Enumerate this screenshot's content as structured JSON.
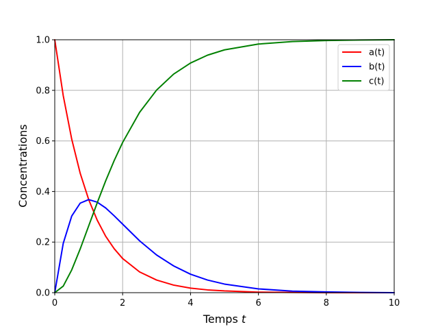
{
  "chart_data": {
    "type": "line",
    "xlabel": "Temps",
    "xlabel_italic": "t",
    "ylabel": "Concentrations",
    "xlim": [
      0,
      10
    ],
    "ylim": [
      0,
      1
    ],
    "xticks": [
      0,
      2,
      4,
      6,
      8,
      10
    ],
    "xtick_labels": [
      "0",
      "2",
      "4",
      "6",
      "8",
      "10"
    ],
    "yticks": [
      0,
      0.2,
      0.4,
      0.6,
      0.8,
      1.0
    ],
    "ytick_labels": [
      "0.0",
      "0.2",
      "0.4",
      "0.6",
      "0.8",
      "1.0"
    ],
    "grid": true,
    "legend_position": "top-right",
    "x": [
      0,
      0.25,
      0.5,
      0.75,
      1,
      1.25,
      1.5,
      1.75,
      2,
      2.5,
      3,
      3.5,
      4,
      4.5,
      5,
      6,
      7,
      8,
      9,
      10
    ],
    "series": [
      {
        "name": "a(t)",
        "color": "#ff0000",
        "values": [
          1.0,
          0.779,
          0.607,
          0.472,
          0.368,
          0.287,
          0.223,
          0.174,
          0.135,
          0.082,
          0.05,
          0.03,
          0.018,
          0.011,
          0.007,
          0.002,
          0.001,
          0.0,
          0.0,
          0.0
        ]
      },
      {
        "name": "b(t)",
        "color": "#0000ff",
        "values": [
          0.0,
          0.195,
          0.303,
          0.354,
          0.368,
          0.358,
          0.335,
          0.304,
          0.271,
          0.205,
          0.149,
          0.106,
          0.073,
          0.05,
          0.034,
          0.015,
          0.006,
          0.003,
          0.001,
          0.0
        ]
      },
      {
        "name": "c(t)",
        "color": "#008000",
        "values": [
          0.0,
          0.026,
          0.09,
          0.173,
          0.264,
          0.355,
          0.442,
          0.522,
          0.594,
          0.713,
          0.801,
          0.864,
          0.908,
          0.939,
          0.96,
          0.983,
          0.993,
          0.997,
          0.999,
          1.0
        ]
      }
    ]
  }
}
